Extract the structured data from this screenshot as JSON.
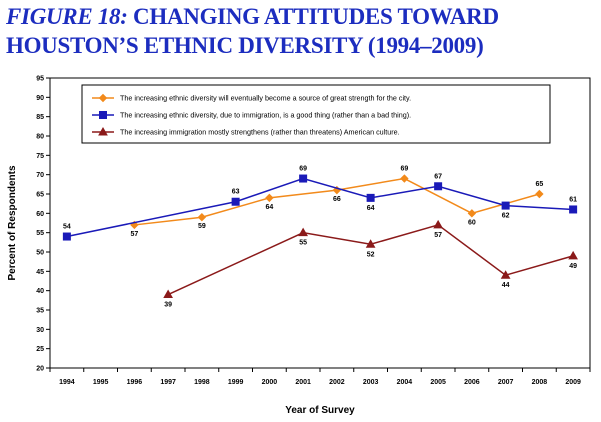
{
  "title": {
    "prefix": "FIGURE 18:",
    "text": " CHANGING ATTITUDES TOWARD HOUSTON’S ETHNIC DIVERSITY (1994–2009)"
  },
  "chart_data": {
    "type": "line",
    "xlabel": "Year of Survey",
    "ylabel": "Percent of Respondents",
    "ylim": [
      20,
      95
    ],
    "y_ticks": [
      20,
      25,
      30,
      35,
      40,
      45,
      50,
      55,
      60,
      65,
      70,
      75,
      80,
      85,
      90,
      95
    ],
    "categories": [
      "1994",
      "1995",
      "1996",
      "1997",
      "1998",
      "1999",
      "2000",
      "2001",
      "2002",
      "2003",
      "2004",
      "2005",
      "2006",
      "2007",
      "2008",
      "2009"
    ],
    "grid": false,
    "legend_position": "top-inside",
    "series": [
      {
        "name": "The increasing ethnic diversity will eventually become a source of great strength for the city.",
        "color": "#f28a1b",
        "marker": "diamond",
        "points": [
          {
            "x": "1996",
            "y": 57
          },
          {
            "x": "1998",
            "y": 59
          },
          {
            "x": "2000",
            "y": 64
          },
          {
            "x": "2002",
            "y": 66
          },
          {
            "x": "2004",
            "y": 69
          },
          {
            "x": "2006",
            "y": 60
          },
          {
            "x": "2008",
            "y": 65
          }
        ]
      },
      {
        "name": "The increasing ethnic diversity, due to immigration, is a good thing (rather than a bad thing).",
        "color": "#1a1ab8",
        "marker": "square",
        "points": [
          {
            "x": "1994",
            "y": 54
          },
          {
            "x": "1999",
            "y": 63
          },
          {
            "x": "2001",
            "y": 69
          },
          {
            "x": "2003",
            "y": 64
          },
          {
            "x": "2005",
            "y": 67
          },
          {
            "x": "2007",
            "y": 62
          },
          {
            "x": "2009",
            "y": 61
          }
        ]
      },
      {
        "name": "The increasing immigration mostly strengthens (rather than threatens) American culture.",
        "color": "#8b1a1a",
        "marker": "triangle",
        "points": [
          {
            "x": "1997",
            "y": 39
          },
          {
            "x": "2001",
            "y": 55
          },
          {
            "x": "2003",
            "y": 52
          },
          {
            "x": "2005",
            "y": 57
          },
          {
            "x": "2007",
            "y": 44
          },
          {
            "x": "2009",
            "y": 49
          }
        ]
      }
    ]
  }
}
